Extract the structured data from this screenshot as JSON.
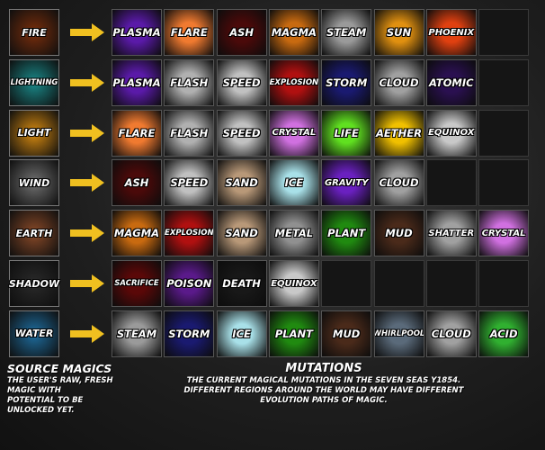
{
  "source_magics": [
    {
      "label": "FIRE",
      "color": "#7a2e0c"
    },
    {
      "label": "LIGHTNING",
      "color": "#1a8a8a"
    },
    {
      "label": "LIGHT",
      "color": "#d68a10"
    },
    {
      "label": "WIND",
      "color": "#707070"
    },
    {
      "label": "EARTH",
      "color": "#8a4a28"
    },
    {
      "label": "SHADOW",
      "color": "#2a2a2a"
    },
    {
      "label": "WATER",
      "color": "#1e6ea0"
    }
  ],
  "mutations": [
    [
      {
        "label": "PLASMA",
        "color": "#5a1aa8"
      },
      {
        "label": "FLARE",
        "color": "#f07a30"
      },
      {
        "label": "ASH",
        "color": "#4a0a0a"
      },
      {
        "label": "MAGMA",
        "color": "#c86a10"
      },
      {
        "label": "STEAM",
        "color": "#9a9a9a"
      },
      {
        "label": "SUN",
        "color": "#e09010"
      },
      {
        "label": "PHOENIX",
        "color": "#e04010"
      },
      {
        "label": "",
        "color": ""
      }
    ],
    [
      {
        "label": "PLASMA",
        "color": "#5a1aa8"
      },
      {
        "label": "FLASH",
        "color": "#b0b0b0"
      },
      {
        "label": "SPEED",
        "color": "#c0c0c0"
      },
      {
        "label": "EXPLOSION",
        "color": "#b01010"
      },
      {
        "label": "STORM",
        "color": "#1a1a70"
      },
      {
        "label": "CLOUD",
        "color": "#a0a0a0"
      },
      {
        "label": "ATOMIC",
        "color": "#2a1050"
      },
      {
        "label": "",
        "color": ""
      }
    ],
    [
      {
        "label": "FLARE",
        "color": "#f07a30"
      },
      {
        "label": "FLASH",
        "color": "#b0b0b0"
      },
      {
        "label": "SPEED",
        "color": "#c0c0c0"
      },
      {
        "label": "CRYSTAL",
        "color": "#d070e0"
      },
      {
        "label": "LIFE",
        "color": "#60e020"
      },
      {
        "label": "AETHER",
        "color": "#f0c000"
      },
      {
        "label": "EQUINOX",
        "color": "#c8c8c8"
      },
      {
        "label": "",
        "color": ""
      }
    ],
    [
      {
        "label": "ASH",
        "color": "#4a0a0a"
      },
      {
        "label": "SPEED",
        "color": "#c0c0c0"
      },
      {
        "label": "SAND",
        "color": "#b89878"
      },
      {
        "label": "ICE",
        "color": "#a8e0e8"
      },
      {
        "label": "GRAVITY",
        "color": "#6a20c0"
      },
      {
        "label": "CLOUD",
        "color": "#a0a0a0"
      },
      {
        "label": "",
        "color": ""
      },
      {
        "label": "",
        "color": ""
      }
    ],
    [
      {
        "label": "MAGMA",
        "color": "#c86a10"
      },
      {
        "label": "EXPLOSION",
        "color": "#b01010"
      },
      {
        "label": "SAND",
        "color": "#b89878"
      },
      {
        "label": "METAL",
        "color": "#909090"
      },
      {
        "label": "PLANT",
        "color": "#208a10"
      },
      {
        "label": "MUD",
        "color": "#4a2a1a"
      },
      {
        "label": "SHATTER",
        "color": "#a0a0a0"
      },
      {
        "label": "CRYSTAL",
        "color": "#d070e0"
      }
    ],
    [
      {
        "label": "SACRIFICE",
        "color": "#5a0808"
      },
      {
        "label": "POISON",
        "color": "#5a1a8a"
      },
      {
        "label": "DEATH",
        "color": "#181818"
      },
      {
        "label": "EQUINOX",
        "color": "#c8c8c8"
      },
      {
        "label": "",
        "color": ""
      },
      {
        "label": "",
        "color": ""
      },
      {
        "label": "",
        "color": ""
      },
      {
        "label": "",
        "color": ""
      }
    ],
    [
      {
        "label": "STEAM",
        "color": "#9a9a9a"
      },
      {
        "label": "STORM",
        "color": "#1a1a70"
      },
      {
        "label": "ICE",
        "color": "#a8e0e8"
      },
      {
        "label": "PLANT",
        "color": "#208a10"
      },
      {
        "label": "MUD",
        "color": "#4a2a1a"
      },
      {
        "label": "WHIRLPOOL",
        "color": "#5a6a7a"
      },
      {
        "label": "CLOUD",
        "color": "#a0a0a0"
      },
      {
        "label": "ACID",
        "color": "#30b030"
      }
    ]
  ],
  "captions": {
    "source_title": "SOURCE MAGICS",
    "source_text_1": "THE USER'S RAW, FRESH",
    "source_text_2": "MAGIC WITH",
    "source_text_3": "POTENTIAL TO BE",
    "source_text_4": "UNLOCKED YET.",
    "mutations_title": "MUTATIONS",
    "mutations_text_1": "THE CURRENT MAGICAL MUTATIONS IN THE SEVEN SEAS Y1854.",
    "mutations_text_2": "DIFFERENT REGIONS AROUND THE WORLD MAY HAVE DIFFERENT",
    "mutations_text_3": "EVOLUTION PATHS OF MAGIC."
  },
  "arrow_color": "#f0c020",
  "arrow_icon": "arrow-right-icon"
}
